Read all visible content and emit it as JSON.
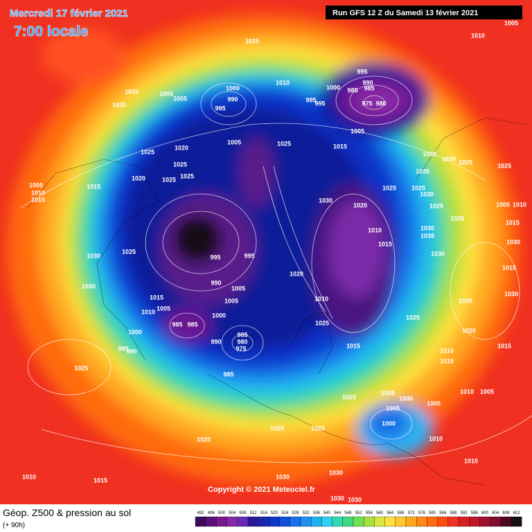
{
  "header": {
    "date": "Mercredi 17 février 2021",
    "time": "7:00 locale",
    "run": "Run GFS 12 Z du Samedi 13 février 2021"
  },
  "footer": {
    "title": "Géop. Z500 & pression au sol",
    "lead": "(+ 90h)",
    "copyright": "Copyright © 2021 Meteociel.fr"
  },
  "legend": {
    "values": [
      492,
      496,
      500,
      504,
      508,
      512,
      516,
      520,
      524,
      528,
      532,
      536,
      540,
      544,
      548,
      552,
      556,
      560,
      564,
      568,
      572,
      576,
      580,
      584,
      588,
      592,
      596,
      600,
      604,
      608,
      612
    ]
  },
  "isobar_labels": [
    1025,
    1010,
    1005,
    1010,
    1000,
    990,
    995,
    995,
    990,
    985,
    985,
    1000,
    995,
    995,
    975,
    980,
    1005,
    1015,
    1025,
    1030,
    1005,
    1005,
    1005,
    1025,
    1025,
    1020,
    1025,
    1025,
    1025,
    1020,
    1005,
    1010,
    1015,
    1015,
    1030,
    1030,
    1025,
    1025,
    1035,
    1025,
    1025,
    1030,
    1030,
    1020,
    1025,
    1000,
    1010,
    1030,
    1035,
    1025,
    1015,
    1010,
    1015,
    1030,
    1025,
    1030,
    1030,
    995,
    995,
    1020,
    990,
    1005,
    1030,
    1015,
    1030,
    1035,
    1015,
    1005,
    1010,
    1005,
    1000,
    1010,
    1025,
    1025,
    985,
    985,
    1000,
    1020,
    985,
    990,
    980,
    975,
    1015,
    1015,
    995,
    990,
    1010,
    1015,
    1025,
    985,
    1005,
    1025,
    1000,
    1005,
    1005,
    1010,
    1005,
    1000,
    1025,
    1025,
    1025,
    1010,
    1010,
    1010,
    1015,
    1030,
    1030,
    1030,
    1030
  ]
}
